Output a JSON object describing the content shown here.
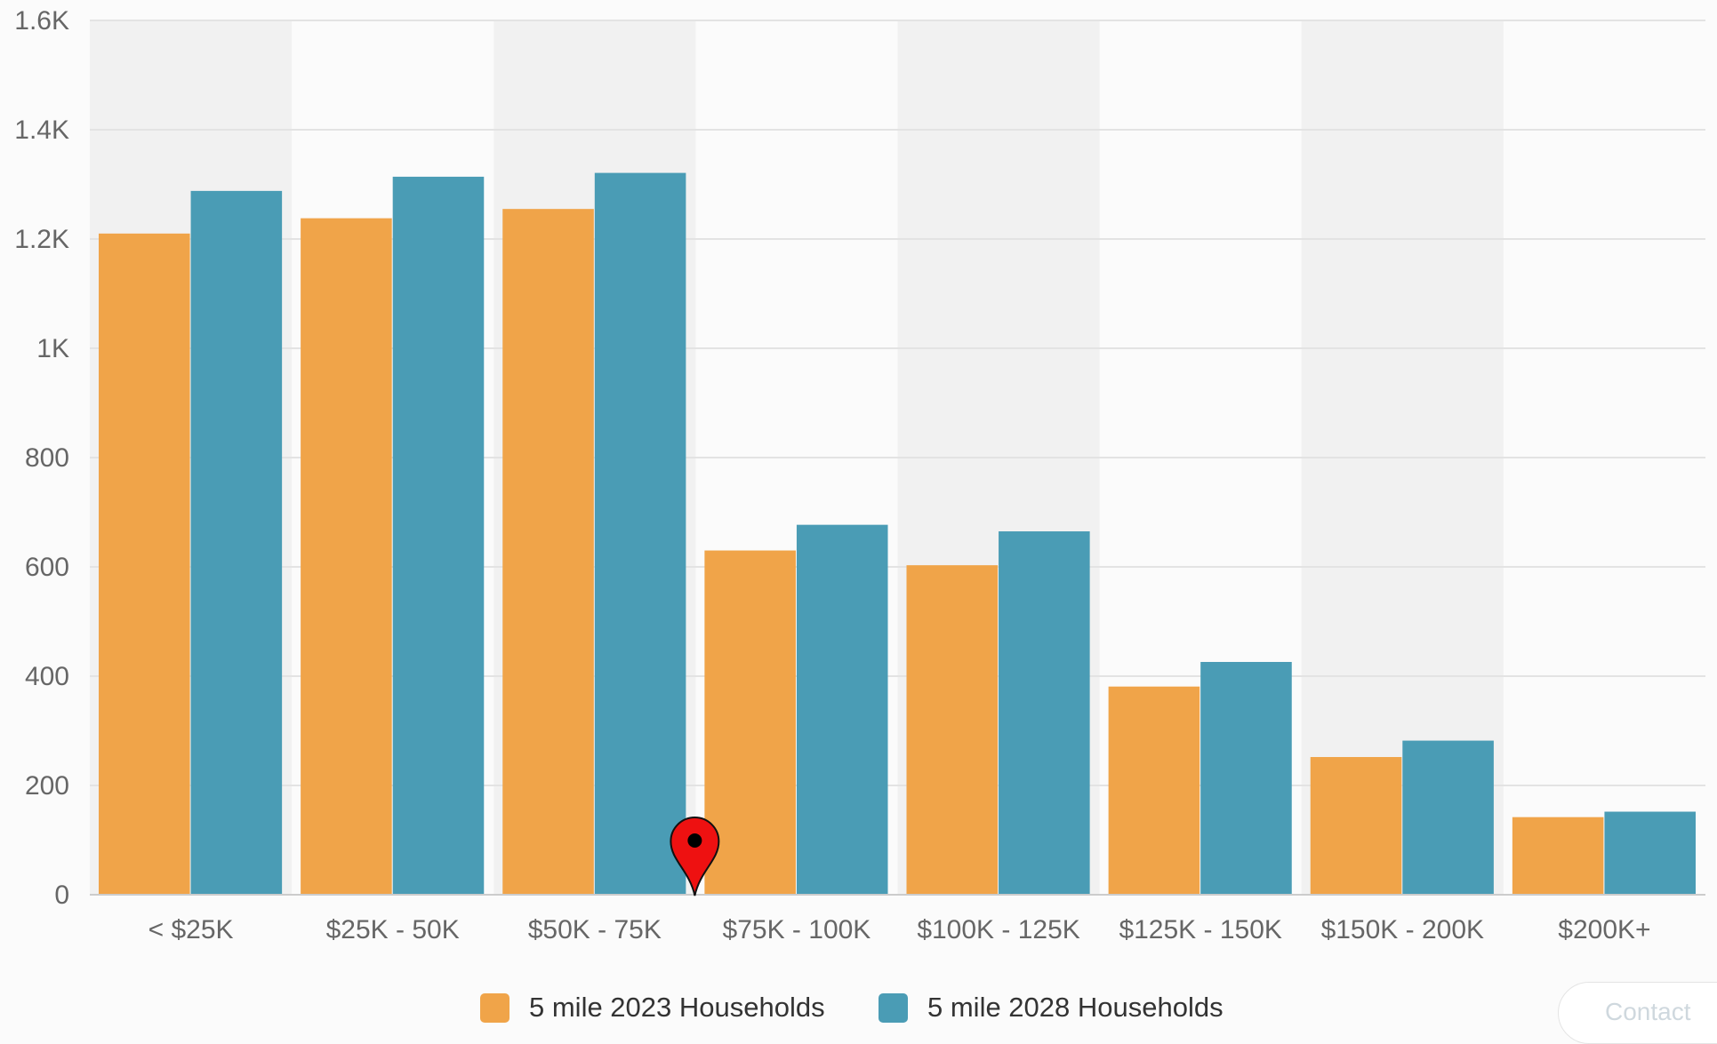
{
  "chart_data": {
    "type": "bar",
    "categories": [
      "< $25K",
      "$25K - 50K",
      "$50K - 75K",
      "$75K - 100K",
      "$100K - 125K",
      "$125K - 150K",
      "$150K - 200K",
      "$200K+"
    ],
    "series": [
      {
        "name": "5 mile 2023 Households",
        "color": "#f0a449",
        "values": [
          1210,
          1238,
          1255,
          630,
          603,
          381,
          252,
          142
        ]
      },
      {
        "name": "5 mile 2028 Households",
        "color": "#4a9cb5",
        "values": [
          1288,
          1314,
          1321,
          677,
          665,
          426,
          282,
          152
        ]
      }
    ],
    "ylim": [
      0,
      1600
    ],
    "yticks": [
      {
        "value": 0,
        "label": "0"
      },
      {
        "value": 200,
        "label": "200"
      },
      {
        "value": 400,
        "label": "400"
      },
      {
        "value": 600,
        "label": "600"
      },
      {
        "value": 800,
        "label": "800"
      },
      {
        "value": 1000,
        "label": "1K"
      },
      {
        "value": 1200,
        "label": "1.2K"
      },
      {
        "value": 1400,
        "label": "1.4K"
      },
      {
        "value": 1600,
        "label": "1.6K"
      }
    ],
    "grid": true,
    "alternating_bands": true,
    "legend_position": "bottom-center",
    "marker": {
      "icon": "map-pin-icon",
      "color": "#ee1111",
      "category_boundary": "$50K - 75K|$75K - 100K"
    }
  },
  "footer": {
    "contact_label": "Contact"
  }
}
